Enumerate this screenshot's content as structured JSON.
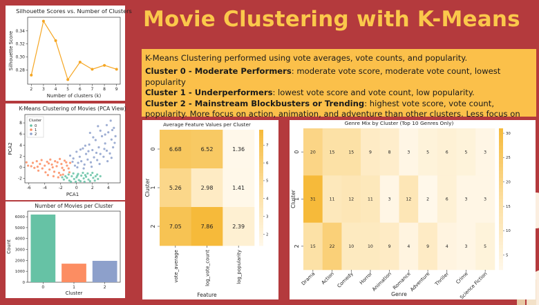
{
  "header": {
    "title": "Movie Clustering with K-Means"
  },
  "description": {
    "intro": "K-Means Clustering performed using vote averages, vote counts, and popularity.",
    "clusters": [
      {
        "name": "Cluster 0 - Moderate Performers",
        "text": ": moderate vote score, moderate vote count, lowest popularity"
      },
      {
        "name": "Cluster 1 - Underperformers",
        "text": ": lowest vote score and vote count, low popularity."
      },
      {
        "name": "Cluster 2 - Mainstream Blockbusters or Trending",
        "text": ": highest vote score, vote count, popularity. More focus on action, animation, and adventure than other clusters. Less focus on drama and romance."
      }
    ]
  },
  "colors": {
    "accent": "#fbc84b",
    "background": "#b43a3d",
    "text_box": "#fbc04a",
    "line": "#f5a623",
    "cluster0": "#66c2a5",
    "cluster1": "#fc8d62",
    "cluster2": "#8da0cb"
  },
  "chart_data": [
    {
      "type": "line",
      "title": "Silhouette Scores vs. Number of Clusters",
      "xlabel": "Number of clusters (k)",
      "ylabel": "Silhouette Score",
      "x": [
        2,
        3,
        4,
        5,
        6,
        7,
        8,
        9
      ],
      "values": [
        0.272,
        0.355,
        0.325,
        0.265,
        0.292,
        0.281,
        0.287,
        0.281
      ],
      "xlim": [
        1.7,
        9.3
      ],
      "ylim": [
        0.258,
        0.361
      ],
      "yticks": [
        0.28,
        0.3,
        0.32,
        0.34
      ],
      "ytick_labels": [
        "0.28",
        "0.30",
        "0.32",
        "0.34"
      ],
      "grid": false
    },
    {
      "type": "scatter",
      "title": "K-Means Clustering of Movies (PCA View)",
      "xlabel": "PCA1",
      "ylabel": "PCA2",
      "xlim": [
        -6.5,
        5.5
      ],
      "ylim": [
        -2.8,
        9.5
      ],
      "xticks": [
        -6,
        -4,
        -2,
        0,
        2,
        4
      ],
      "yticks": [
        -2,
        0,
        2,
        4,
        6,
        8
      ],
      "legend": {
        "title": "Cluster",
        "placement": "top-left",
        "entries": [
          "0",
          "1",
          "2"
        ]
      },
      "series": [
        {
          "name": "0",
          "points": [
            [
              -1.6,
              -2.2
            ],
            [
              -1.2,
              -1.9
            ],
            [
              -0.9,
              -2.4
            ],
            [
              -0.6,
              -1.6
            ],
            [
              -0.3,
              -2.1
            ],
            [
              0,
              -1.8
            ],
            [
              0.3,
              -2.3
            ],
            [
              0.6,
              -1.5
            ],
            [
              0.9,
              -2
            ],
            [
              1.2,
              -1.7
            ],
            [
              1.5,
              -2.2
            ],
            [
              1.8,
              -1.4
            ],
            [
              2.1,
              -1.9
            ],
            [
              2.4,
              -1.6
            ],
            [
              2.7,
              -2.1
            ],
            [
              -1,
              -1.3
            ],
            [
              -0.4,
              -1.1
            ],
            [
              0.2,
              -1.2
            ],
            [
              0.8,
              -1
            ],
            [
              1.4,
              -1.1
            ],
            [
              2,
              -1
            ],
            [
              2.6,
              -1.3
            ],
            [
              3,
              -1.6
            ],
            [
              -1.4,
              -1.6
            ],
            [
              0.5,
              -2.5
            ],
            [
              1,
              -2.6
            ],
            [
              -0.1,
              -2.6
            ],
            [
              1.7,
              -2.5
            ],
            [
              2.3,
              -2.4
            ],
            [
              -0.7,
              -2.6
            ],
            [
              0.1,
              -1.5
            ],
            [
              1.1,
              -1.4
            ],
            [
              -1.8,
              -1.8
            ]
          ]
        },
        {
          "name": "1",
          "points": [
            [
              -6.1,
              0.3
            ],
            [
              -5.7,
              0.2
            ],
            [
              -5.3,
              -0.1
            ],
            [
              -5.5,
              0.8
            ],
            [
              -4.9,
              0.1
            ],
            [
              -4.6,
              0.6
            ],
            [
              -4.3,
              -0.2
            ],
            [
              -4,
              0.3
            ],
            [
              -3.7,
              1
            ],
            [
              -3.4,
              -0.4
            ],
            [
              -3.1,
              0.5
            ],
            [
              -2.8,
              -0.8
            ],
            [
              -2.5,
              0.2
            ],
            [
              -2.2,
              -1
            ],
            [
              -1.9,
              0.6
            ],
            [
              -1.6,
              -0.5
            ],
            [
              -1.3,
              0.9
            ],
            [
              -1,
              -0.2
            ],
            [
              -3.9,
              -0.9
            ],
            [
              -3.3,
              1.4
            ],
            [
              -2.7,
              1.1
            ],
            [
              -2.1,
              1.5
            ],
            [
              -1.5,
              1.2
            ],
            [
              -4.4,
              1.3
            ],
            [
              -5,
              1.1
            ],
            [
              -3.6,
              -1.4
            ],
            [
              -2.9,
              -1.6
            ],
            [
              -2.3,
              -1.8
            ],
            [
              -1.7,
              -1.3
            ],
            [
              -1.2,
              0.3
            ],
            [
              -0.8,
              0.8
            ],
            [
              -4.8,
              -0.6
            ],
            [
              -3,
              0
            ],
            [
              -2.4,
              0.9
            ],
            [
              -1.8,
              -0.1
            ],
            [
              -3.5,
              0.7
            ],
            [
              -0.9,
              -0.9
            ],
            [
              -2,
              -1.4
            ],
            [
              -6.3,
              0.9
            ]
          ]
        },
        {
          "name": "2",
          "points": [
            [
              -0.8,
              2.1
            ],
            [
              -0.4,
              1.6
            ],
            [
              0,
              2.8
            ],
            [
              0.4,
              1.9
            ],
            [
              0.8,
              3.4
            ],
            [
              1.2,
              2.4
            ],
            [
              1.6,
              4.1
            ],
            [
              2,
              3.1
            ],
            [
              2.4,
              4.9
            ],
            [
              2.8,
              3.6
            ],
            [
              3.2,
              5.6
            ],
            [
              3.6,
              4.3
            ],
            [
              4,
              6.3
            ],
            [
              4.4,
              5
            ],
            [
              4.7,
              7.1
            ],
            [
              0.2,
              0.8
            ],
            [
              0.6,
              1.1
            ],
            [
              1,
              0.5
            ],
            [
              1.4,
              1.4
            ],
            [
              1.8,
              0.9
            ],
            [
              2.2,
              1.8
            ],
            [
              2.6,
              1.3
            ],
            [
              3,
              2.4
            ],
            [
              3.4,
              1.9
            ],
            [
              3.8,
              3
            ],
            [
              4.2,
              2.5
            ],
            [
              4.6,
              3.6
            ],
            [
              -0.2,
              0.3
            ],
            [
              0.9,
              -0.2
            ],
            [
              1.9,
              0.1
            ],
            [
              2.9,
              0.6
            ],
            [
              3.9,
              1.1
            ],
            [
              4.4,
              1.7
            ],
            [
              1.1,
              3.9
            ],
            [
              2.1,
              5.4
            ],
            [
              3,
              6.6
            ],
            [
              3.8,
              7.6
            ],
            [
              0.5,
              3.2
            ],
            [
              1.5,
              2.9
            ],
            [
              2.5,
              2.6
            ],
            [
              3.5,
              3.3
            ],
            [
              4.8,
              4.4
            ],
            [
              4.3,
              8.4
            ],
            [
              4.5,
              6.7
            ],
            [
              -0.5,
              1
            ],
            [
              0.1,
              0
            ],
            [
              2.7,
              7.4
            ],
            [
              3.6,
              5.9
            ],
            [
              4.9,
              5.6
            ],
            [
              1.7,
              6.2
            ]
          ]
        }
      ]
    },
    {
      "type": "bar",
      "title": "Number of Movies per Cluster",
      "xlabel": "Cluster",
      "ylabel": "Count",
      "categories": [
        "0",
        "1",
        "2"
      ],
      "values": [
        6200,
        1700,
        1960
      ],
      "ylim": [
        0,
        6510
      ],
      "yticks": [
        0,
        1000,
        2000,
        3000,
        4000,
        5000,
        6000
      ]
    },
    {
      "type": "heatmap",
      "title": "Average Feature Values per Cluster",
      "xlabel": "Feature",
      "ylabel": "Cluster",
      "rows": [
        "0",
        "1",
        "2"
      ],
      "columns": [
        "vote_average",
        "log_vote_count",
        "log_popularity"
      ],
      "values": [
        [
          6.68,
          6.52,
          1.36
        ],
        [
          5.26,
          2.98,
          1.41
        ],
        [
          7.05,
          7.86,
          2.39
        ]
      ],
      "value_labels": [
        [
          "6.68",
          "6.52",
          "1.36"
        ],
        [
          "5.26",
          "2.98",
          "1.41"
        ],
        [
          "7.05",
          "7.86",
          "2.39"
        ]
      ],
      "colorbar_range": [
        1.36,
        7.86
      ],
      "colorbar_ticks": [
        2,
        3,
        4,
        5,
        6,
        7
      ]
    },
    {
      "type": "heatmap",
      "title": "Genre Mix by Cluster (Top 10 Genres Only)",
      "xlabel": "Genre",
      "ylabel": "Cluster",
      "rows": [
        "0",
        "1",
        "2"
      ],
      "columns": [
        "Drama",
        "Action",
        "Comedy",
        "Horror",
        "Animation",
        "Romance",
        "Adventure",
        "Thriller",
        "Crime",
        "Science Fiction"
      ],
      "values": [
        [
          20,
          15,
          15,
          9,
          8,
          3,
          5,
          6,
          5,
          3
        ],
        [
          31,
          11,
          12,
          11,
          3,
          12,
          2,
          6,
          3,
          3
        ],
        [
          15,
          22,
          10,
          10,
          9,
          4,
          9,
          4,
          3,
          5
        ]
      ],
      "colorbar_range": [
        2,
        31
      ],
      "colorbar_ticks": [
        5,
        10,
        15,
        20,
        25,
        30
      ]
    }
  ]
}
